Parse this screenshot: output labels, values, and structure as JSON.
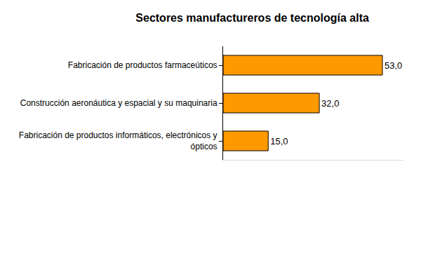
{
  "chart_data": {
    "type": "bar",
    "orientation": "horizontal",
    "title": "Sectores manufactureros de tecnología alta",
    "categories": [
      "Fabricación de productos farmaceúticos",
      "Construcción aeronáutica y espacial y su maquinaria",
      "Fabricación de productos informáticos, electrónicos y ópticos"
    ],
    "values": [
      53,
      32,
      15
    ],
    "value_labels": [
      "53,0",
      "32,0",
      "15,0"
    ],
    "color": "#ff9900",
    "xlim": [
      0,
      60
    ],
    "grid": false,
    "data_labels": true,
    "tick_labels": "y"
  }
}
